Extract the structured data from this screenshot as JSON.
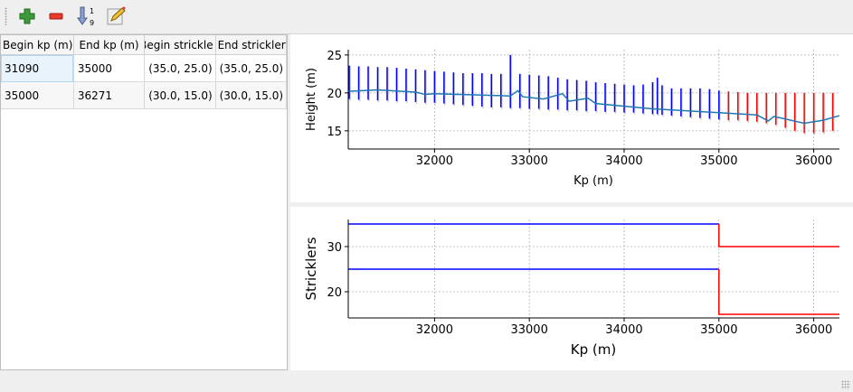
{
  "toolbar": {
    "items": [
      {
        "name": "add-icon",
        "tooltip": ""
      },
      {
        "name": "remove-icon",
        "tooltip": ""
      },
      {
        "name": "sort-icon",
        "sort_digits": [
          "1",
          "9"
        ]
      },
      {
        "name": "edit-icon"
      }
    ]
  },
  "table": {
    "columns": [
      "Begin kp (m)",
      "End kp (m)",
      "Begin strickle",
      "End strickler"
    ],
    "rows": [
      [
        "31090",
        "35000",
        "(35.0, 25.0)",
        "(35.0, 25.0)"
      ],
      [
        "35000",
        "36271",
        "(30.0, 15.0)",
        "(30.0, 15.0)"
      ]
    ]
  },
  "colors": {
    "reach1": "#0000ff",
    "reach2": "#ff0000",
    "bed": "#1f77b4",
    "grid": "#b0b0b0"
  },
  "chart_data": [
    {
      "type": "line",
      "xlabel": "Kp (m)",
      "ylabel": "Height (m)",
      "xlim": [
        31090,
        36271
      ],
      "ylim": [
        12.6,
        25.7
      ],
      "xticks": [
        32000,
        33000,
        34000,
        35000,
        36000
      ],
      "yticks": [
        15,
        20,
        25
      ],
      "grid": true,
      "sections": {
        "kp": [
          31100,
          31200,
          31300,
          31400,
          31500,
          31600,
          31700,
          31800,
          31900,
          32000,
          32100,
          32200,
          32300,
          32400,
          32500,
          32600,
          32700,
          32800,
          32900,
          33000,
          33100,
          33200,
          33300,
          33400,
          33500,
          33600,
          33700,
          33800,
          33900,
          34000,
          34100,
          34200,
          34300,
          34350,
          34400,
          34500,
          34600,
          34700,
          34800,
          34900,
          35000,
          35100,
          35200,
          35300,
          35400,
          35500,
          35600,
          35700,
          35800,
          35900,
          36000,
          36100,
          36200
        ],
        "top": [
          23.6,
          23.5,
          23.5,
          23.4,
          23.4,
          23.3,
          23.2,
          23.1,
          23.0,
          22.9,
          22.8,
          22.7,
          22.6,
          22.6,
          22.6,
          22.5,
          22.5,
          25.0,
          22.5,
          22.4,
          22.3,
          22.2,
          22.0,
          21.8,
          21.7,
          21.6,
          21.4,
          21.3,
          21.2,
          21.1,
          21.0,
          21.1,
          21.4,
          22.0,
          21.0,
          20.6,
          20.6,
          20.6,
          20.6,
          20.5,
          20.3,
          20.2,
          20.1,
          20.0,
          20.0,
          20.0,
          20.0,
          20.0,
          20.0,
          20.0,
          20.0,
          20.0,
          20.0
        ],
        "bottom": [
          19.2,
          19.1,
          19.1,
          19.0,
          19.0,
          18.9,
          18.9,
          18.8,
          18.7,
          18.7,
          18.6,
          18.5,
          18.4,
          18.3,
          18.2,
          18.1,
          18.1,
          18.0,
          18.0,
          17.9,
          17.9,
          17.8,
          17.8,
          17.7,
          17.7,
          17.6,
          17.6,
          17.5,
          17.5,
          17.4,
          17.4,
          17.3,
          17.2,
          17.2,
          17.1,
          17.0,
          16.9,
          16.8,
          16.7,
          16.6,
          16.5,
          16.4,
          16.4,
          16.3,
          16.2,
          16.0,
          15.8,
          15.4,
          15.0,
          14.7,
          14.7,
          14.8,
          15.0
        ],
        "reach": [
          1,
          1,
          1,
          1,
          1,
          1,
          1,
          1,
          1,
          1,
          1,
          1,
          1,
          1,
          1,
          1,
          1,
          1,
          1,
          1,
          1,
          1,
          1,
          1,
          1,
          1,
          1,
          1,
          1,
          1,
          1,
          1,
          1,
          1,
          1,
          1,
          1,
          1,
          1,
          1,
          1,
          2,
          2,
          2,
          2,
          2,
          2,
          2,
          2,
          2,
          2,
          2,
          2
        ]
      },
      "bed_line": {
        "x": [
          31090,
          31400,
          31800,
          31900,
          32000,
          32800,
          32880,
          32930,
          33150,
          33350,
          33420,
          33620,
          33700,
          34300,
          35000,
          35400,
          35520,
          35580,
          35900,
          36100,
          36271
        ],
        "y": [
          20.2,
          20.4,
          20.1,
          19.8,
          19.9,
          19.6,
          20.3,
          19.5,
          19.2,
          19.9,
          18.9,
          19.3,
          18.6,
          17.9,
          17.4,
          17.1,
          16.3,
          16.9,
          16.0,
          16.4,
          17.0
        ]
      }
    },
    {
      "type": "line",
      "xlabel": "Kp (m)",
      "ylabel": "Stricklers",
      "xlim": [
        31090,
        36271
      ],
      "ylim": [
        14.2,
        36.0
      ],
      "xticks": [
        32000,
        33000,
        34000,
        35000,
        36000
      ],
      "yticks": [
        20,
        30
      ],
      "grid": true,
      "series": [
        {
          "x": [
            31090,
            35000
          ],
          "y": [
            35,
            35
          ],
          "reach": 1
        },
        {
          "x": [
            31090,
            35000
          ],
          "y": [
            25,
            25
          ],
          "reach": 1
        },
        {
          "x": [
            35000,
            35000,
            36271
          ],
          "y": [
            35,
            30,
            30
          ],
          "reach": 2
        },
        {
          "x": [
            35000,
            35000,
            36271
          ],
          "y": [
            25,
            15,
            15
          ],
          "reach": 2
        }
      ]
    }
  ]
}
